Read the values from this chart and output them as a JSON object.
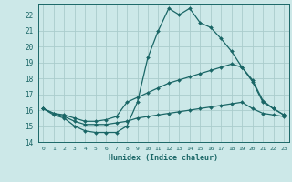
{
  "xlabel": "Humidex (Indice chaleur)",
  "xlim": [
    -0.5,
    23.5
  ],
  "ylim": [
    14,
    22.7
  ],
  "yticks": [
    14,
    15,
    16,
    17,
    18,
    19,
    20,
    21,
    22
  ],
  "xticks": [
    0,
    1,
    2,
    3,
    4,
    5,
    6,
    7,
    8,
    9,
    10,
    11,
    12,
    13,
    14,
    15,
    16,
    17,
    18,
    19,
    20,
    21,
    22,
    23
  ],
  "background_color": "#cce8e8",
  "grid_color": "#aacccc",
  "line_color": "#1a6666",
  "lines": [
    {
      "x": [
        0,
        1,
        2,
        3,
        4,
        5,
        6,
        7,
        8,
        9,
        10,
        11,
        12,
        13,
        14,
        15,
        16,
        17,
        18,
        19,
        20,
        21,
        22,
        23
      ],
      "y": [
        16.1,
        15.7,
        15.5,
        15.0,
        14.7,
        14.6,
        14.6,
        14.6,
        15.0,
        16.5,
        19.3,
        21.0,
        22.4,
        22.0,
        22.4,
        21.5,
        21.2,
        20.5,
        19.7,
        18.7,
        17.8,
        16.5,
        16.1,
        15.7
      ]
    },
    {
      "x": [
        0,
        1,
        2,
        3,
        4,
        5,
        6,
        7,
        8,
        9,
        10,
        11,
        12,
        13,
        14,
        15,
        16,
        17,
        18,
        19,
        20,
        21,
        22,
        23
      ],
      "y": [
        16.1,
        15.8,
        15.7,
        15.5,
        15.3,
        15.3,
        15.4,
        15.6,
        16.5,
        16.8,
        17.1,
        17.4,
        17.7,
        17.9,
        18.1,
        18.3,
        18.5,
        18.7,
        18.9,
        18.7,
        17.9,
        16.6,
        16.1,
        15.7
      ]
    },
    {
      "x": [
        0,
        1,
        2,
        3,
        4,
        5,
        6,
        7,
        8,
        9,
        10,
        11,
        12,
        13,
        14,
        15,
        16,
        17,
        18,
        19,
        20,
        21,
        22,
        23
      ],
      "y": [
        16.1,
        15.8,
        15.6,
        15.3,
        15.1,
        15.1,
        15.1,
        15.2,
        15.3,
        15.5,
        15.6,
        15.7,
        15.8,
        15.9,
        16.0,
        16.1,
        16.2,
        16.3,
        16.4,
        16.5,
        16.1,
        15.8,
        15.7,
        15.6
      ]
    }
  ]
}
